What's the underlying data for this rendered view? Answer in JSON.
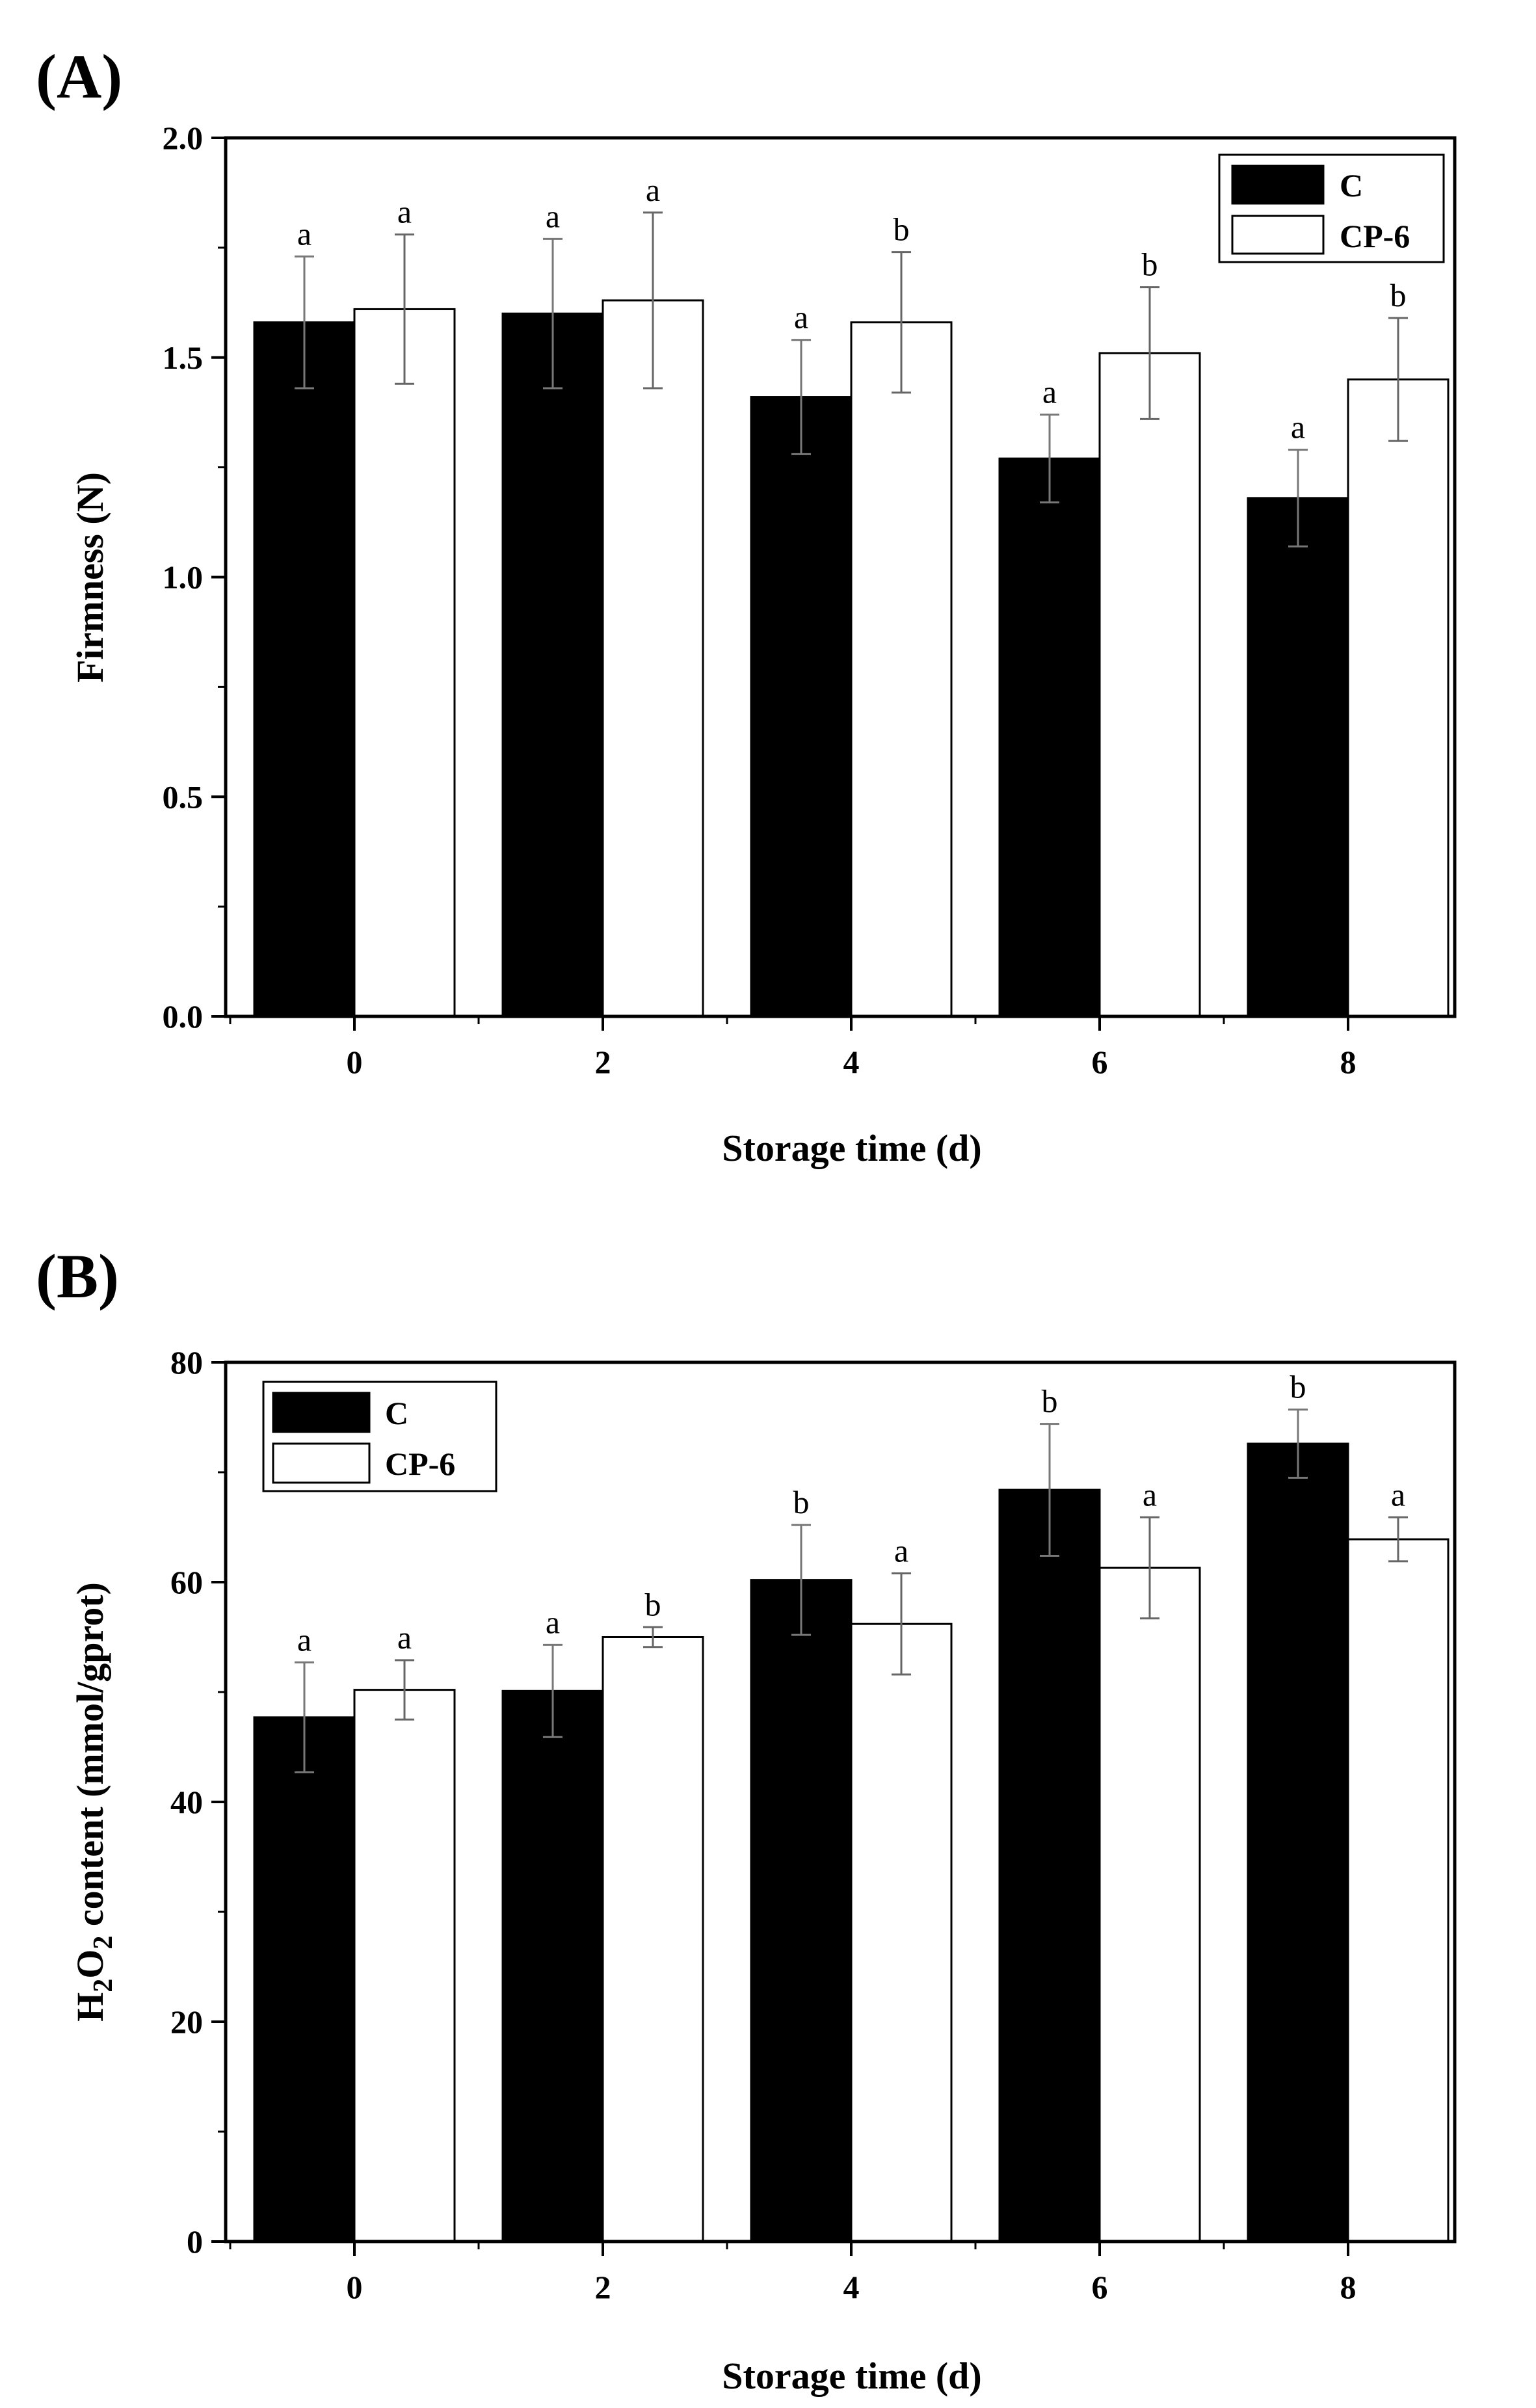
{
  "chart_data": [
    {
      "type": "bar",
      "panel_label": "(A)",
      "categories": [
        "0",
        "2",
        "4",
        "6",
        "8"
      ],
      "series": [
        {
          "name": "C",
          "color": "#000000",
          "values": [
            1.58,
            1.6,
            1.41,
            1.27,
            1.18
          ],
          "errors": [
            0.15,
            0.17,
            0.13,
            0.1,
            0.11
          ],
          "letters": [
            "a",
            "a",
            "a",
            "a",
            "a"
          ]
        },
        {
          "name": "CP-6",
          "color": "#ffffff",
          "values": [
            1.61,
            1.63,
            1.58,
            1.51,
            1.45
          ],
          "errors": [
            0.17,
            0.2,
            0.16,
            0.15,
            0.14
          ],
          "letters": [
            "a",
            "a",
            "b",
            "b",
            "b"
          ]
        }
      ],
      "ylim": [
        0,
        2.0
      ],
      "yticks": [
        "0.0",
        "0.5",
        "1.0",
        "1.5",
        "2.0"
      ],
      "xlabel": "Storage time (d)",
      "ylabel": "Firmness (N)",
      "legend_position": "top-right"
    },
    {
      "type": "bar",
      "panel_label": "(B)",
      "categories": [
        "0",
        "2",
        "4",
        "6",
        "8"
      ],
      "series": [
        {
          "name": "C",
          "color": "#000000",
          "values": [
            47.7,
            50.1,
            60.2,
            68.4,
            72.6
          ],
          "errors": [
            5.0,
            4.2,
            5.0,
            6.0,
            3.1
          ],
          "letters": [
            "a",
            "a",
            "b",
            "b",
            "b"
          ]
        },
        {
          "name": "CP-6",
          "color": "#ffffff",
          "values": [
            50.2,
            55.0,
            56.2,
            61.3,
            63.9
          ],
          "errors": [
            2.7,
            0.9,
            4.6,
            4.6,
            2.0
          ],
          "letters": [
            "a",
            "b",
            "a",
            "a",
            "a"
          ]
        }
      ],
      "ylim": [
        0,
        80
      ],
      "yticks": [
        "0",
        "20",
        "40",
        "60",
        "80"
      ],
      "xlabel": "Storage time (d)",
      "ylabel_parts": [
        "H",
        "2",
        "O",
        "2",
        " content (mmol/gprot)"
      ],
      "legend_position": "top-left"
    }
  ]
}
